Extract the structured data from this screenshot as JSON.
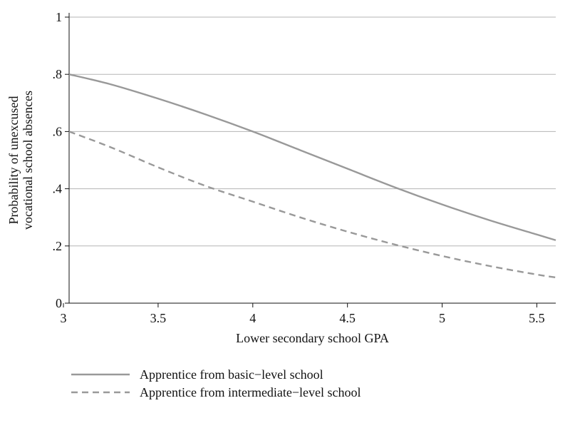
{
  "chart_data": {
    "type": "line",
    "xlabel": "Lower secondary school GPA",
    "ylabel_lines": [
      "Probability of unexcused",
      "vocational school absences"
    ],
    "xlim": [
      3.03,
      5.6
    ],
    "ylim": [
      0,
      1
    ],
    "xticks": [
      3,
      3.5,
      4,
      4.5,
      5,
      5.5
    ],
    "xtick_labels": [
      "3",
      "3.5",
      "4",
      "4.5",
      "5",
      "5.5"
    ],
    "yticks": [
      0,
      0.2,
      0.4,
      0.6,
      0.8,
      1
    ],
    "ytick_labels": [
      "0",
      ".2",
      ".4",
      ".6",
      ".8",
      "1"
    ],
    "grid": true,
    "legend_position": "bottom",
    "series": [
      {
        "name": "Apprentice from basic−level school",
        "style": "solid",
        "color": "#999999",
        "x": [
          3.03,
          3.25,
          3.5,
          3.75,
          4.0,
          4.25,
          4.5,
          4.75,
          5.0,
          5.25,
          5.5,
          5.6
        ],
        "y": [
          0.8,
          0.765,
          0.715,
          0.66,
          0.6,
          0.535,
          0.47,
          0.405,
          0.345,
          0.29,
          0.24,
          0.22
        ]
      },
      {
        "name": "Apprentice from intermediate−level school",
        "style": "dashed",
        "color": "#999999",
        "x": [
          3.03,
          3.25,
          3.5,
          3.75,
          4.0,
          4.25,
          4.5,
          4.75,
          5.0,
          5.25,
          5.5,
          5.6
        ],
        "y": [
          0.6,
          0.545,
          0.475,
          0.41,
          0.355,
          0.3,
          0.25,
          0.205,
          0.165,
          0.13,
          0.1,
          0.09
        ]
      }
    ]
  }
}
